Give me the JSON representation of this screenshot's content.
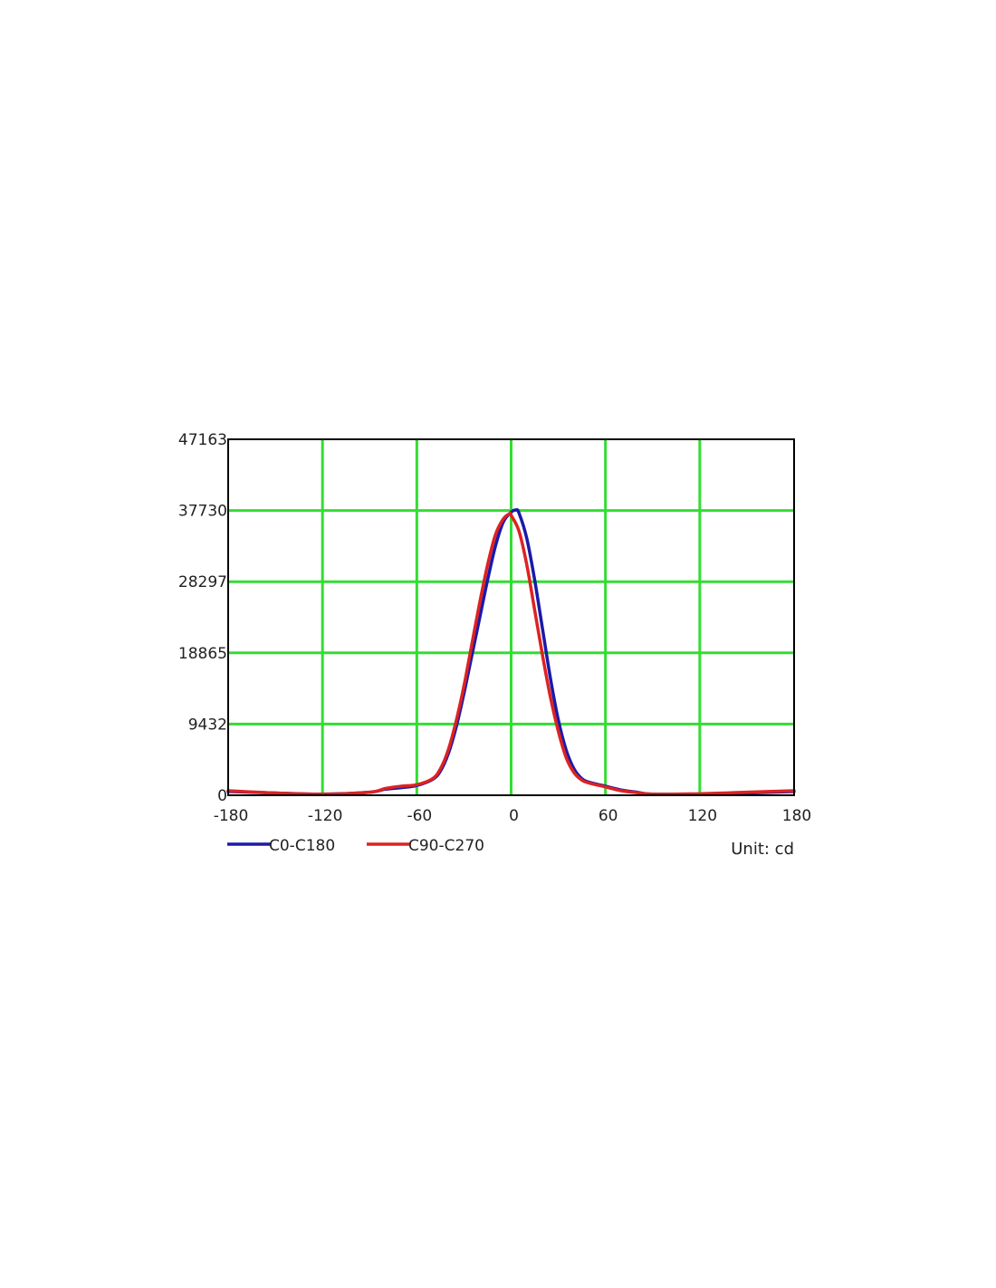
{
  "chart_data": {
    "type": "line",
    "title": "",
    "xlabel": "",
    "ylabel": "",
    "unit_label": "Unit: cd",
    "xlim": [
      -180,
      180
    ],
    "ylim": [
      0,
      47163
    ],
    "x_ticks": [
      -180,
      -120,
      -60,
      0,
      60,
      120,
      180
    ],
    "y_ticks": [
      0,
      9432,
      18865,
      28297,
      37730,
      47163
    ],
    "grid": true,
    "grid_color": "#33dd33",
    "legend_position": "bottom-left",
    "series": [
      {
        "name": "C0-C180",
        "color": "#1a1aaa",
        "x": [
          -180,
          -150,
          -120,
          -90,
          -80,
          -70,
          -60,
          -50,
          -45,
          -40,
          -35,
          -30,
          -25,
          -20,
          -15,
          -10,
          -5,
          0,
          3,
          5,
          10,
          15,
          20,
          25,
          30,
          35,
          40,
          45,
          50,
          60,
          70,
          80,
          90,
          120,
          150,
          180
        ],
        "y": [
          500,
          300,
          150,
          400,
          800,
          1000,
          1300,
          2100,
          3200,
          5500,
          9000,
          13500,
          18500,
          23500,
          28500,
          33000,
          36200,
          37500,
          37800,
          37400,
          34000,
          28500,
          22000,
          15500,
          10000,
          6000,
          3500,
          2200,
          1700,
          1200,
          700,
          400,
          150,
          150,
          300,
          500
        ]
      },
      {
        "name": "C90-C270",
        "color": "#dd2222",
        "x": [
          -180,
          -150,
          -120,
          -90,
          -80,
          -70,
          -60,
          -50,
          -45,
          -40,
          -35,
          -30,
          -25,
          -20,
          -15,
          -10,
          -5,
          -1,
          0,
          5,
          10,
          15,
          20,
          25,
          30,
          35,
          40,
          45,
          50,
          60,
          70,
          80,
          90,
          120,
          150,
          180
        ],
        "y": [
          600,
          300,
          150,
          400,
          900,
          1200,
          1400,
          2200,
          3500,
          6000,
          9800,
          14500,
          20000,
          25500,
          30500,
          34500,
          36600,
          37300,
          37100,
          35000,
          30500,
          24500,
          18500,
          13000,
          8500,
          5000,
          3000,
          2000,
          1600,
          1100,
          600,
          350,
          150,
          200,
          400,
          600
        ]
      }
    ]
  }
}
